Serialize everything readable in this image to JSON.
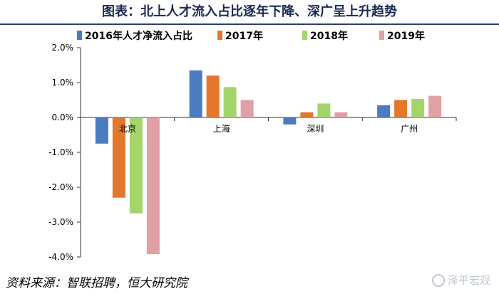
{
  "title": "图表：北上人才流入占比逐年下降、深广呈上升趋势",
  "source": "资料来源：智联招聘，恒大研究院",
  "watermark": "泽平宏观",
  "colors": {
    "s2016": "#4a7cbf",
    "s2017": "#e3772b",
    "s2018": "#a3d56b",
    "s2019": "#e0a0a5",
    "axis": "#333333"
  },
  "chart_data": {
    "type": "bar",
    "title": "",
    "xlabel": "",
    "ylabel": "",
    "categories": [
      "北京",
      "上海",
      "深圳",
      "广州"
    ],
    "series": [
      {
        "name": "2016年人才净流入占比",
        "values": [
          -0.75,
          1.35,
          -0.2,
          0.35
        ]
      },
      {
        "name": "2017年",
        "values": [
          -2.3,
          1.2,
          0.15,
          0.5
        ]
      },
      {
        "name": "2018年",
        "values": [
          -2.75,
          0.87,
          0.4,
          0.53
        ]
      },
      {
        "name": "2019年",
        "values": [
          -3.92,
          0.5,
          0.15,
          0.62
        ]
      }
    ],
    "ylim": [
      -4.0,
      2.0
    ],
    "yticks": [
      "2.0%",
      "1.0%",
      "0.0%",
      "-1.0%",
      "-2.0%",
      "-3.0%",
      "-4.0%"
    ],
    "grid": false,
    "legend": "top"
  }
}
